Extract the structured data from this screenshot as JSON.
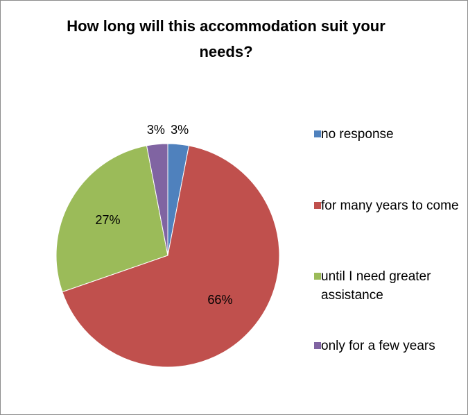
{
  "chart_data": {
    "type": "pie",
    "title": "How long will this accommodation suit your needs?",
    "categories": [
      "no response",
      "for many years to come",
      "until I need greater assistance",
      "only for a few years"
    ],
    "values": [
      3,
      66,
      27,
      3
    ],
    "value_labels": [
      "3%",
      "66%",
      "27%",
      "3%"
    ],
    "colors": [
      "#4f81bd",
      "#c0504d",
      "#9bbb59",
      "#8064a2"
    ],
    "legend": "right"
  }
}
